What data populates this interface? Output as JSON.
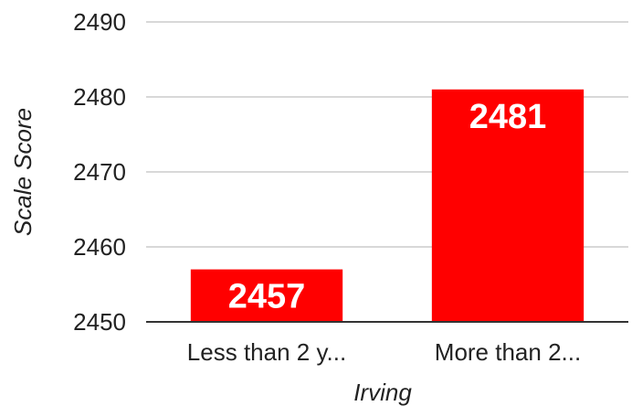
{
  "chart_data": {
    "type": "bar",
    "categories": [
      "Less than 2 y...",
      "More than 2..."
    ],
    "values": [
      2457,
      2481
    ],
    "data_labels": [
      "2457",
      "2481"
    ],
    "xlabel": "Irving",
    "ylabel": "Scale Score",
    "ylim": [
      2450,
      2490
    ],
    "yticks": [
      2450,
      2460,
      2470,
      2480,
      2490
    ],
    "ytick_labels": [
      "2450",
      "2460",
      "2470",
      "2480",
      "2490"
    ],
    "grid": true,
    "legend": "none",
    "colors": {
      "bar": "#ff0000",
      "gridline": "#cccccc",
      "baseline": "#333333",
      "data_label": "#ffffff",
      "text": "#222222"
    }
  }
}
